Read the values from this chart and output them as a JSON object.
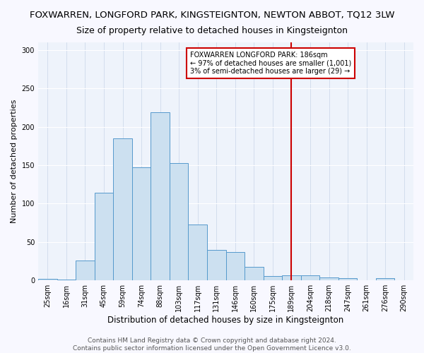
{
  "title": "FOXWARREN, LONGFORD PARK, KINGSTEIGNTON, NEWTON ABBOT, TQ12 3LW",
  "subtitle": "Size of property relative to detached houses in Kingsteignton",
  "xlabel": "Distribution of detached houses by size in Kingsteignton",
  "ylabel": "Number of detached properties",
  "categories": [
    "25sqm",
    "16sqm",
    "31sqm",
    "45sqm",
    "59sqm",
    "74sqm",
    "88sqm",
    "103sqm",
    "117sqm",
    "131sqm",
    "146sqm",
    "160sqm",
    "175sqm",
    "189sqm",
    "204sqm",
    "218sqm",
    "247sqm",
    "261sqm",
    "276sqm",
    "290sqm"
  ],
  "values": [
    2,
    1,
    26,
    114,
    185,
    147,
    219,
    153,
    73,
    40,
    37,
    18,
    6,
    7,
    7,
    4,
    3,
    0,
    3,
    0
  ],
  "bar_color": "#cce0f0",
  "bar_edge_color": "#5599cc",
  "background_color": "#eef3fb",
  "grid_color": "#ffffff",
  "annotation_line1": "FOXWARREN LONGFORD PARK: 186sqm",
  "annotation_line2": "← 97% of detached houses are smaller (1,001)",
  "annotation_line3": "3% of semi-detached houses are larger (29) →",
  "annotation_box_edge_color": "#cc0000",
  "vline_x_index": 13,
  "vline_color": "#cc0000",
  "ylim": [
    0,
    310
  ],
  "yticks": [
    0,
    50,
    100,
    150,
    200,
    250,
    300
  ],
  "footer_line1": "Contains HM Land Registry data © Crown copyright and database right 2024.",
  "footer_line2": "Contains public sector information licensed under the Open Government Licence v3.0.",
  "title_fontsize": 9.5,
  "subtitle_fontsize": 9,
  "xlabel_fontsize": 8.5,
  "ylabel_fontsize": 8,
  "tick_fontsize": 7,
  "footer_fontsize": 6.5,
  "ann_fontsize": 7.0
}
